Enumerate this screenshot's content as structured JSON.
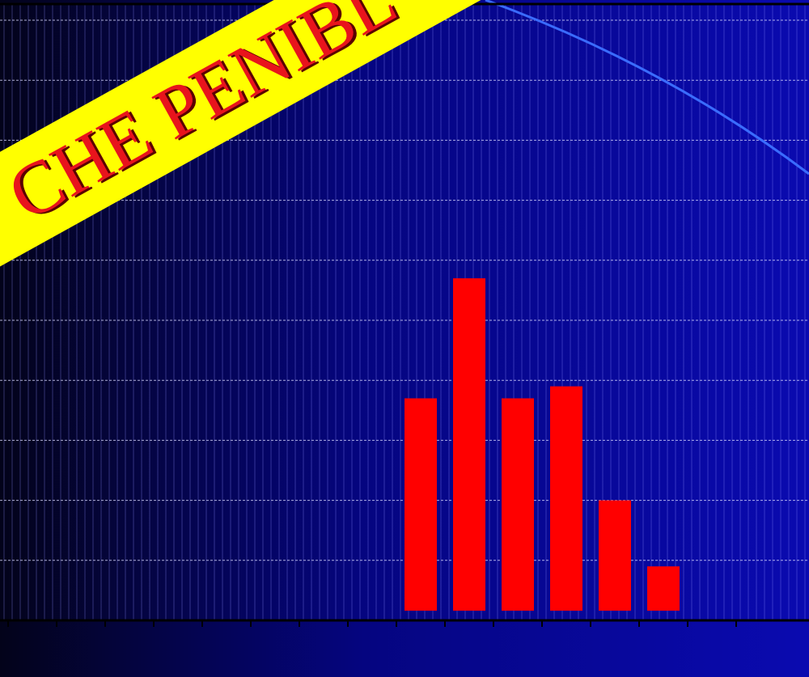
{
  "chart_data": {
    "type": "bar",
    "banner": "CHE PENIBL",
    "categories": [
      null,
      null,
      null,
      null,
      null,
      null,
      null,
      null,
      null,
      null,
      null,
      null,
      null,
      null,
      null,
      null
    ],
    "values": [
      null,
      null,
      null,
      null,
      null,
      null,
      null,
      null,
      3.7,
      5.7,
      3.7,
      3.9,
      2.0,
      0.9,
      null,
      null
    ],
    "color": "#ff0000",
    "ylim": [
      0,
      10
    ],
    "yticks": [
      0,
      1,
      2,
      3,
      4,
      5,
      6,
      7,
      8,
      9,
      10
    ],
    "grid": true
  }
}
